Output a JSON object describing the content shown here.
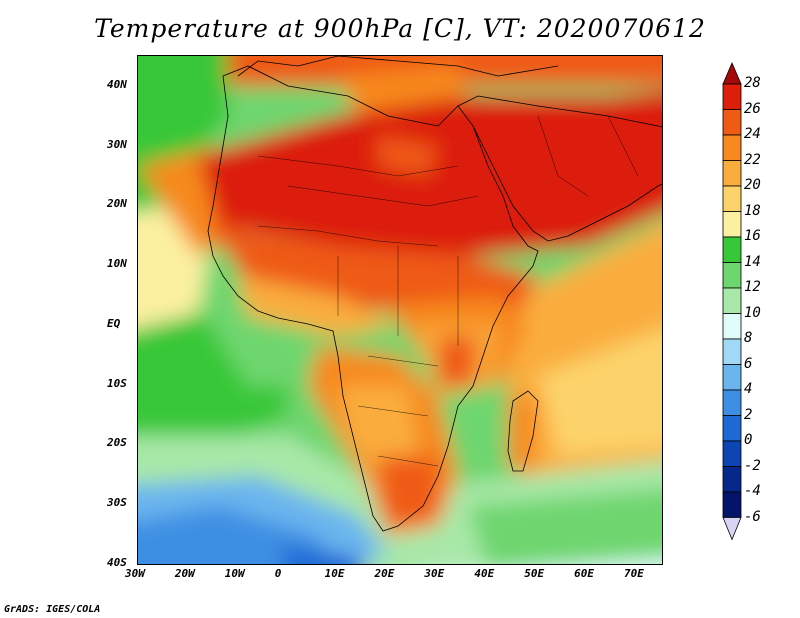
{
  "title": "Temperature at 900hPa [C], VT: 2020070612",
  "credit": "GrADS: IGES/COLA",
  "map": {
    "lon_range": [
      -30,
      75
    ],
    "lat_range": [
      -40,
      45
    ],
    "lon_ticks": [
      "30W",
      "20W",
      "10W",
      "0",
      "10E",
      "20E",
      "30E",
      "40E",
      "50E",
      "60E",
      "70E"
    ],
    "lat_ticks": [
      "40N",
      "30N",
      "20N",
      "10N",
      "EQ",
      "10S",
      "20S",
      "30S",
      "40S"
    ]
  },
  "colorbar": {
    "labels": [
      "28",
      "26",
      "24",
      "22",
      "20",
      "18",
      "16",
      "14",
      "12",
      "10",
      "8",
      "6",
      "4",
      "2",
      "0",
      "-2",
      "-4",
      "-6"
    ],
    "colors": [
      "#a50a0a",
      "#dc1e0a",
      "#ef5a14",
      "#f7891e",
      "#faad3c",
      "#fcd36b",
      "#fbf0a0",
      "#38c738",
      "#6ed66e",
      "#a8e8a8",
      "#e0fbf8",
      "#a0d8f5",
      "#6ab5ee",
      "#3c8fe3",
      "#1f69d6",
      "#0d46b3",
      "#06288a",
      "#03146a",
      "#d8d4f5"
    ]
  }
}
